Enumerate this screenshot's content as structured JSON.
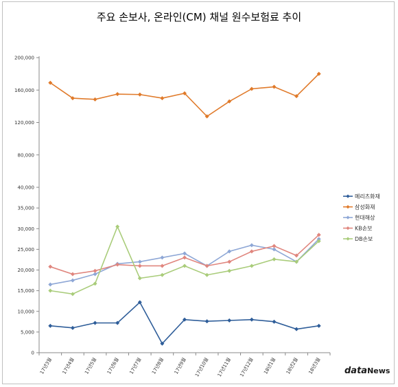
{
  "chart_data": {
    "type": "line",
    "title": "주요 손보사, 온라인(CM) 채널 원수보험료 추이",
    "categories": [
      "17년3월",
      "17년4월",
      "17년5월",
      "17년6월",
      "17년7월",
      "17년8월",
      "17년9월",
      "17년10월",
      "17년11월",
      "17년12월",
      "18년1월",
      "18년2월",
      "18년3월"
    ],
    "y_ticks_lower": [
      "0",
      "5,000",
      "10,000",
      "15,000",
      "20,000",
      "25,000",
      "30,000",
      "35,000",
      "40,000"
    ],
    "y_ticks_upper": [
      "80,000",
      "120,000",
      "160,000",
      "200,000"
    ],
    "y_axis": "broken: 0–40,000 on lower section, 40,000–200,000 on compressed upper section",
    "ylim": [
      0,
      200000
    ],
    "grid": false,
    "legend_position": "right",
    "series": [
      {
        "name": "메리츠화재",
        "color": "#2e5d99",
        "marker": "diamond",
        "values": [
          6500,
          6000,
          7200,
          7200,
          12200,
          2200,
          8000,
          7600,
          7800,
          8000,
          7500,
          5700,
          6500
        ]
      },
      {
        "name": "삼성화재",
        "color": "#e07a2a",
        "marker": "diamond",
        "values": [
          169000,
          150000,
          148500,
          155000,
          154500,
          150000,
          156000,
          127500,
          146000,
          161500,
          164000,
          152500,
          180000
        ]
      },
      {
        "name": "현대해상",
        "color": "#8ea7d6",
        "marker": "diamond",
        "values": [
          16500,
          17500,
          19000,
          21500,
          22000,
          23000,
          24000,
          21000,
          24500,
          26000,
          25000,
          22000,
          27500
        ]
      },
      {
        "name": "KB손보",
        "color": "#e0867e",
        "marker": "diamond",
        "values": [
          20800,
          19000,
          19800,
          21300,
          21000,
          21000,
          23000,
          21000,
          22000,
          24500,
          25800,
          23500,
          28500
        ]
      },
      {
        "name": "DB손보",
        "color": "#a9cc7a",
        "marker": "diamond",
        "values": [
          15000,
          14200,
          16700,
          30500,
          18000,
          18800,
          21000,
          18800,
          19800,
          21000,
          22600,
          22000,
          27000
        ]
      }
    ]
  },
  "watermark": {
    "brand_a": "data",
    "brand_b": "News"
  }
}
